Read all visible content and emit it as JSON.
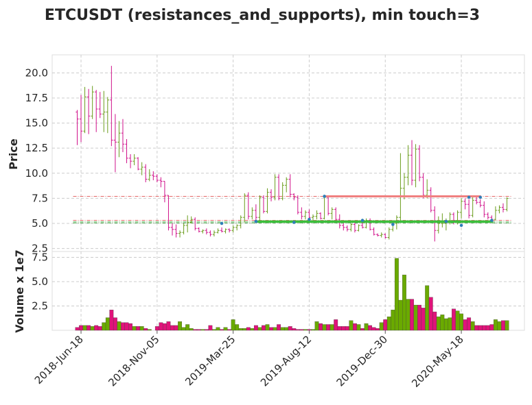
{
  "chart_data": {
    "type": "candlestick",
    "title": "ETCUSDT (resistances_and_supports), min touch=3",
    "price_panel": {
      "ylabel": "Price",
      "ylim": [
        2.2,
        21.8
      ],
      "yticks": [
        "2.5",
        "5.0",
        "7.5",
        "10.0",
        "12.5",
        "15.0",
        "17.5",
        "20.0"
      ],
      "ytick_values": [
        2.5,
        5.0,
        7.5,
        10.0,
        12.5,
        15.0,
        17.5,
        20.0
      ],
      "up_color": "#6a9c1c",
      "down_color": "#d0108a",
      "candles": [
        [
          16.1,
          16.3,
          12.8,
          15.4
        ],
        [
          15.4,
          17.8,
          13.1,
          14.2
        ],
        [
          14.2,
          18.6,
          14.0,
          17.6
        ],
        [
          17.6,
          18.4,
          13.9,
          15.7
        ],
        [
          15.7,
          18.7,
          15.4,
          18.1
        ],
        [
          18.1,
          18.3,
          14.1,
          16.4
        ],
        [
          16.4,
          18.1,
          15.5,
          15.9
        ],
        [
          15.9,
          18.2,
          14.1,
          16.1
        ],
        [
          16.1,
          17.6,
          14.0,
          17.3
        ],
        [
          17.3,
          20.7,
          12.7,
          13.3
        ],
        [
          13.3,
          15.9,
          10.1,
          13.1
        ],
        [
          13.1,
          15.2,
          11.6,
          14.0
        ],
        [
          14.0,
          15.4,
          12.1,
          12.9
        ],
        [
          12.9,
          13.4,
          11.0,
          11.5
        ],
        [
          11.5,
          11.9,
          10.5,
          11.2
        ],
        [
          11.2,
          11.9,
          10.8,
          11.5
        ],
        [
          11.5,
          11.6,
          10.3,
          10.4
        ],
        [
          10.4,
          11.1,
          9.8,
          10.6
        ],
        [
          10.6,
          10.9,
          9.1,
          9.4
        ],
        [
          9.4,
          10.4,
          9.2,
          9.8
        ],
        [
          9.8,
          10.2,
          9.3,
          9.7
        ],
        [
          9.7,
          9.9,
          9.1,
          9.3
        ],
        [
          9.3,
          9.6,
          8.6,
          9.2
        ],
        [
          9.2,
          9.2,
          7.1,
          7.8
        ],
        [
          7.8,
          7.8,
          4.3,
          4.6
        ],
        [
          4.6,
          5.0,
          3.8,
          4.4
        ],
        [
          4.4,
          4.9,
          3.6,
          4.0
        ],
        [
          4.0,
          4.3,
          3.6,
          4.1
        ],
        [
          4.1,
          5.0,
          3.9,
          4.8
        ],
        [
          4.8,
          5.8,
          4.1,
          5.1
        ],
        [
          5.1,
          5.7,
          5.0,
          5.4
        ],
        [
          5.4,
          5.6,
          4.3,
          4.5
        ],
        [
          4.5,
          4.6,
          4.1,
          4.2
        ],
        [
          4.2,
          4.4,
          4.0,
          4.3
        ],
        [
          4.3,
          4.5,
          3.9,
          4.1
        ],
        [
          4.1,
          4.3,
          3.7,
          3.9
        ],
        [
          3.9,
          4.3,
          3.7,
          4.1
        ],
        [
          4.1,
          4.5,
          4.0,
          4.3
        ],
        [
          4.3,
          4.6,
          4.1,
          4.2
        ],
        [
          4.2,
          4.5,
          4.0,
          4.4
        ],
        [
          4.4,
          4.5,
          4.1,
          4.3
        ],
        [
          4.3,
          4.8,
          4.1,
          4.6
        ],
        [
          4.6,
          4.9,
          4.3,
          4.8
        ],
        [
          4.8,
          5.8,
          4.5,
          5.6
        ],
        [
          5.6,
          8.0,
          5.1,
          7.8
        ],
        [
          7.8,
          8.1,
          5.4,
          5.7
        ],
        [
          5.7,
          6.6,
          5.4,
          6.3
        ],
        [
          6.3,
          6.9,
          5.3,
          5.6
        ],
        [
          5.6,
          7.8,
          5.2,
          7.6
        ],
        [
          7.6,
          7.8,
          6.0,
          6.2
        ],
        [
          6.2,
          8.5,
          6.0,
          8.1
        ],
        [
          8.1,
          8.4,
          7.2,
          7.6
        ],
        [
          7.6,
          9.9,
          7.3,
          9.6
        ],
        [
          9.6,
          9.9,
          7.3,
          7.5
        ],
        [
          7.5,
          9.1,
          7.3,
          8.8
        ],
        [
          8.8,
          9.6,
          8.1,
          9.4
        ],
        [
          9.4,
          9.9,
          7.6,
          7.9
        ],
        [
          7.9,
          8.0,
          7.3,
          7.6
        ],
        [
          7.6,
          7.8,
          5.9,
          6.1
        ],
        [
          6.1,
          6.6,
          5.4,
          5.7
        ],
        [
          5.7,
          6.3,
          5.4,
          6.1
        ],
        [
          6.1,
          6.4,
          5.5,
          5.6
        ],
        [
          5.6,
          5.9,
          5.3,
          5.7
        ],
        [
          5.7,
          6.3,
          5.4,
          6.0
        ],
        [
          6.0,
          6.1,
          5.4,
          5.5
        ],
        [
          5.5,
          7.7,
          5.4,
          7.6
        ],
        [
          7.6,
          7.7,
          5.8,
          6.0
        ],
        [
          6.0,
          6.6,
          5.4,
          6.4
        ],
        [
          6.4,
          6.6,
          5.3,
          5.4
        ],
        [
          5.4,
          5.9,
          4.5,
          4.8
        ],
        [
          4.8,
          5.0,
          4.3,
          4.6
        ],
        [
          4.6,
          4.8,
          4.2,
          4.4
        ],
        [
          4.4,
          5.0,
          4.2,
          4.9
        ],
        [
          4.9,
          5.1,
          4.1,
          4.3
        ],
        [
          4.3,
          4.9,
          4.2,
          4.8
        ],
        [
          4.8,
          5.1,
          4.5,
          4.6
        ],
        [
          4.6,
          5.5,
          4.5,
          5.3
        ],
        [
          5.3,
          5.5,
          4.3,
          4.4
        ],
        [
          4.4,
          4.6,
          3.8,
          3.9
        ],
        [
          3.9,
          4.0,
          3.7,
          3.8
        ],
        [
          3.8,
          4.1,
          3.6,
          3.9
        ],
        [
          3.9,
          4.0,
          3.5,
          3.6
        ],
        [
          3.6,
          4.6,
          3.4,
          4.4
        ],
        [
          4.4,
          5.3,
          4.2,
          5.0
        ],
        [
          5.0,
          5.8,
          4.4,
          5.6
        ],
        [
          5.6,
          12.0,
          5.1,
          8.5
        ],
        [
          8.5,
          10.0,
          7.4,
          9.6
        ],
        [
          9.6,
          12.8,
          8.8,
          11.8
        ],
        [
          11.8,
          13.3,
          8.8,
          9.3
        ],
        [
          9.3,
          12.9,
          8.6,
          12.4
        ],
        [
          12.4,
          12.8,
          9.2,
          9.6
        ],
        [
          9.6,
          10.0,
          7.5,
          7.8
        ],
        [
          7.8,
          9.4,
          7.5,
          8.3
        ],
        [
          8.3,
          8.6,
          6.1,
          6.3
        ],
        [
          6.3,
          6.7,
          3.2,
          4.3
        ],
        [
          4.3,
          5.7,
          4.0,
          5.0
        ],
        [
          5.0,
          6.0,
          4.6,
          5.0
        ],
        [
          5.0,
          5.5,
          4.3,
          5.2
        ],
        [
          5.2,
          6.1,
          4.9,
          5.9
        ],
        [
          5.9,
          6.1,
          4.9,
          5.3
        ],
        [
          5.3,
          6.3,
          4.9,
          6.1
        ],
        [
          6.1,
          7.5,
          5.5,
          7.2
        ],
        [
          7.2,
          7.5,
          6.4,
          6.9
        ],
        [
          6.9,
          7.4,
          5.5,
          5.8
        ],
        [
          5.8,
          7.6,
          5.6,
          7.3
        ],
        [
          7.3,
          7.6,
          6.9,
          7.1
        ],
        [
          7.1,
          7.4,
          6.6,
          6.8
        ],
        [
          6.8,
          7.2,
          5.6,
          5.9
        ],
        [
          5.9,
          6.1,
          5.4,
          5.6
        ],
        [
          5.6,
          5.8,
          5.2,
          5.4
        ],
        [
          5.4,
          6.7,
          5.3,
          6.3
        ],
        [
          6.3,
          6.8,
          6.0,
          6.6
        ],
        [
          6.6,
          7.0,
          6.1,
          6.4
        ],
        [
          6.4,
          7.6,
          6.2,
          7.5
        ]
      ],
      "resistance_levels": [
        7.7,
        5.3
      ],
      "support_levels": [
        5.15,
        5.05
      ],
      "resistance_segment": {
        "from_index": 65,
        "to_index": 106,
        "level": 7.7,
        "color": "#f08080"
      },
      "support_segment": {
        "from_index": 47,
        "to_index": 109,
        "level": 5.18,
        "color": "#3cbe3c"
      },
      "touch_points": [
        {
          "index": 38,
          "value": 5.0
        },
        {
          "index": 47,
          "value": 5.2
        },
        {
          "index": 57,
          "value": 5.1
        },
        {
          "index": 61,
          "value": 5.4
        },
        {
          "index": 65,
          "value": 7.7
        },
        {
          "index": 75,
          "value": 5.3
        },
        {
          "index": 83,
          "value": 4.9
        },
        {
          "index": 97,
          "value": 5.2
        },
        {
          "index": 101,
          "value": 4.8
        },
        {
          "index": 103,
          "value": 7.6
        },
        {
          "index": 106,
          "value": 7.6
        },
        {
          "index": 109,
          "value": 5.3
        }
      ]
    },
    "volume_panel": {
      "ylabel": "Volume x 1e7",
      "ylim": [
        0,
        8.1
      ],
      "yticks": [
        "2.5",
        "5.0",
        "7.5"
      ],
      "ytick_values": [
        2.5,
        5.0,
        7.5
      ],
      "values": [
        0.3,
        0.5,
        0.5,
        0.5,
        0.4,
        0.5,
        0.4,
        0.8,
        1.3,
        2.1,
        1.3,
        0.9,
        0.8,
        0.8,
        0.7,
        0.4,
        0.4,
        0.4,
        0.2,
        0.1,
        0.0,
        0.4,
        0.8,
        0.7,
        0.9,
        0.5,
        0.5,
        0.9,
        0.3,
        0.6,
        0.2,
        0.1,
        0.1,
        0.1,
        0.1,
        0.5,
        0.1,
        0.3,
        0.1,
        0.3,
        0.1,
        1.1,
        0.6,
        0.2,
        0.2,
        0.3,
        0.2,
        0.5,
        0.3,
        0.5,
        0.6,
        0.3,
        0.3,
        0.6,
        0.3,
        0.3,
        0.4,
        0.2,
        0.1,
        0.1,
        0.1,
        0.1,
        0.1,
        0.9,
        0.7,
        0.6,
        0.6,
        0.6,
        1.1,
        0.4,
        0.4,
        0.4,
        1.0,
        0.7,
        0.6,
        0.2,
        0.7,
        0.5,
        0.3,
        0.2,
        0.8,
        1.1,
        1.4,
        2.1,
        7.4,
        3.1,
        5.7,
        3.2,
        3.2,
        2.6,
        2.6,
        2.3,
        4.6,
        3.4,
        1.9,
        1.4,
        1.6,
        1.2,
        1.3,
        2.2,
        2.0,
        1.7,
        1.1,
        1.3,
        0.9,
        0.5,
        0.5,
        0.5,
        0.5,
        0.6,
        1.1,
        0.9,
        1.0,
        1.0
      ]
    },
    "x_axis": {
      "tick_labels": [
        "2018-Jun-18",
        "2018-Nov-05",
        "2019-Mar-25",
        "2019-Aug-12",
        "2019-Dec-30",
        "2020-May-18"
      ],
      "tick_indices": [
        1,
        21,
        41,
        61,
        81,
        101
      ]
    },
    "grid": true
  }
}
